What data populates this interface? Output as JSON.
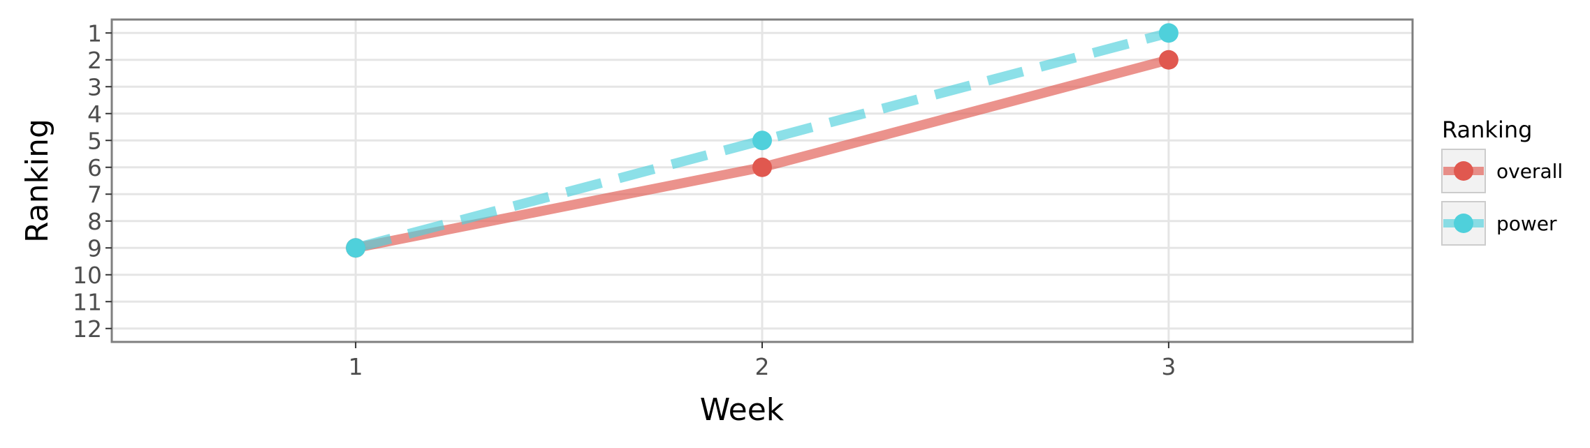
{
  "chart_data": {
    "type": "line",
    "xlabel": "Week",
    "ylabel": "Ranking",
    "x": [
      1,
      2,
      3
    ],
    "x_ticks": [
      "1",
      "2",
      "3"
    ],
    "xlim": [
      0.4,
      3.6
    ],
    "y_ticks": [
      "1",
      "2",
      "3",
      "4",
      "5",
      "6",
      "7",
      "8",
      "9",
      "10",
      "11",
      "12"
    ],
    "ylim": [
      12.5,
      0.5
    ],
    "y_reversed": true,
    "grid": true,
    "legend": {
      "title": "Ranking",
      "placement": "right"
    },
    "series": [
      {
        "name": "overall",
        "values": [
          9,
          6,
          2
        ],
        "color": "#e0584f",
        "linestyle": "solid"
      },
      {
        "name": "power",
        "values": [
          9,
          5,
          1
        ],
        "color": "#4fd0db",
        "linestyle": "dashed"
      }
    ]
  }
}
